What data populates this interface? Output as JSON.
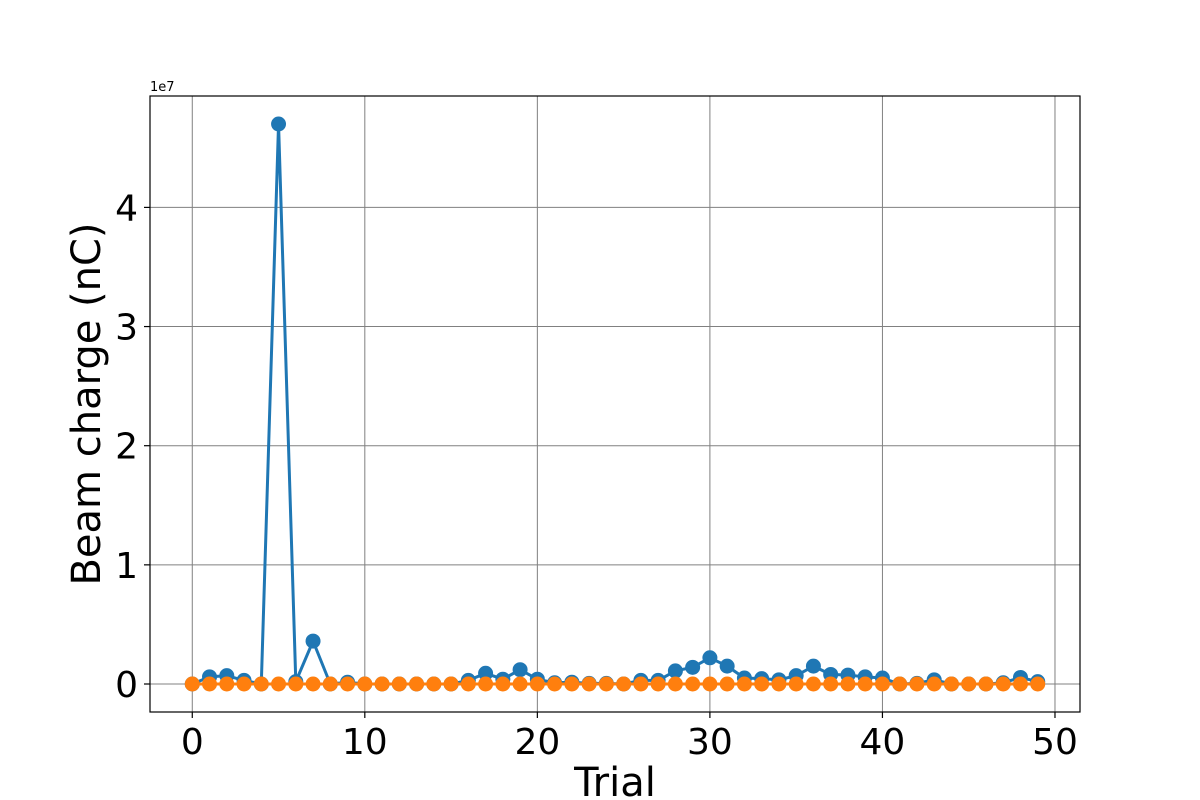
{
  "chart_data": {
    "type": "line",
    "xlabel": "Trial",
    "ylabel": "Beam charge (nC)",
    "y_offset_label": "1e7",
    "y_scale": 10000000,
    "xlim": [
      -2.45,
      51.45
    ],
    "ylim": [
      -2350000,
      49350000
    ],
    "x_ticks": [
      0,
      10,
      20,
      30,
      40,
      50
    ],
    "y_ticks": [
      0,
      1,
      2,
      3,
      4
    ],
    "grid": true,
    "colors": {
      "series_1": "#1f77b4",
      "series_2": "#ff7f0e",
      "grid": "#808080"
    },
    "x": [
      0,
      1,
      2,
      3,
      4,
      5,
      6,
      7,
      8,
      9,
      10,
      11,
      12,
      13,
      14,
      15,
      16,
      17,
      18,
      19,
      20,
      21,
      22,
      23,
      24,
      25,
      26,
      27,
      28,
      29,
      30,
      31,
      32,
      33,
      34,
      35,
      36,
      37,
      38,
      39,
      40,
      41,
      42,
      43,
      44,
      45,
      46,
      47,
      48,
      49
    ],
    "series": [
      {
        "values": [
          0,
          600000,
          700000,
          300000,
          0,
          47000000,
          200000,
          3600000,
          0,
          150000,
          0,
          0,
          0,
          0,
          0,
          0,
          300000,
          900000,
          400000,
          1200000,
          400000,
          100000,
          150000,
          50000,
          50000,
          0,
          300000,
          300000,
          1100000,
          1400000,
          2200000,
          1500000,
          500000,
          450000,
          350000,
          700000,
          1500000,
          800000,
          750000,
          600000,
          500000,
          0,
          50000,
          350000,
          0,
          0,
          0,
          100000,
          550000,
          200000
        ]
      },
      {
        "values": [
          0,
          0,
          0,
          0,
          0,
          0,
          0,
          0,
          0,
          0,
          0,
          0,
          0,
          0,
          0,
          0,
          0,
          0,
          0,
          0,
          0,
          0,
          0,
          0,
          0,
          0,
          0,
          0,
          0,
          0,
          0,
          0,
          0,
          0,
          0,
          0,
          0,
          0,
          0,
          0,
          0,
          0,
          0,
          0,
          0,
          0,
          0,
          0,
          0,
          0
        ]
      }
    ]
  }
}
